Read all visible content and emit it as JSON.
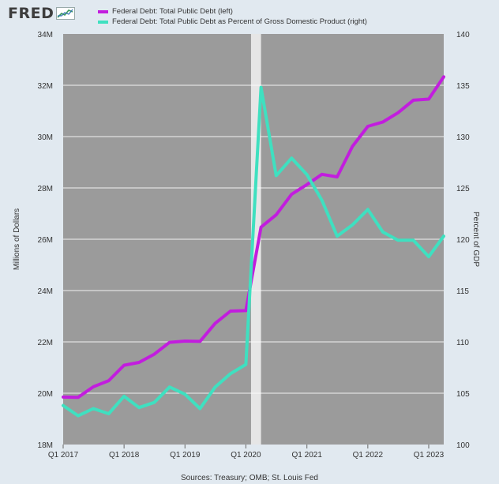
{
  "header": {
    "logo_text": "FRED",
    "logo_icon": "chart-line-icon"
  },
  "colors": {
    "background": "#e1e9f0",
    "plot_background": "#9b9b9b",
    "recession_shading": "#e6e6e6",
    "grid": "#ffffff",
    "series_left": "#c21dde",
    "series_right": "#3fe0c0"
  },
  "source": "Sources: Treasury; OMB; St. Louis Fed",
  "chart_data": {
    "type": "line",
    "x_axis": {
      "ticks": [
        "Q1 2017",
        "Q1 2018",
        "Q1 2019",
        "Q1 2020",
        "Q1 2021",
        "Q1 2022",
        "Q1 2023"
      ],
      "range": [
        "2017-01-01",
        "2023-04-01"
      ]
    },
    "y_left": {
      "label": "Millions of Dollars",
      "range": [
        18000000,
        34000000
      ],
      "ticks": [
        "18M",
        "20M",
        "22M",
        "24M",
        "26M",
        "28M",
        "30M",
        "32M",
        "34M"
      ]
    },
    "y_right": {
      "label": "Percent of GDP",
      "range": [
        100,
        140
      ],
      "ticks": [
        "100",
        "105",
        "110",
        "115",
        "120",
        "125",
        "130",
        "135",
        "140"
      ]
    },
    "recession": {
      "start": "2020-02-01",
      "end": "2020-04-01"
    },
    "grid": true,
    "legend_position": "top",
    "x": [
      "2017-01-01",
      "2017-04-01",
      "2017-07-01",
      "2017-10-01",
      "2018-01-01",
      "2018-04-01",
      "2018-07-01",
      "2018-10-01",
      "2019-01-01",
      "2019-04-01",
      "2019-07-01",
      "2019-10-01",
      "2020-01-01",
      "2020-04-01",
      "2020-07-01",
      "2020-10-01",
      "2021-01-01",
      "2021-04-01",
      "2021-07-01",
      "2021-10-01",
      "2022-01-01",
      "2022-04-01",
      "2022-07-01",
      "2022-10-01",
      "2023-01-01",
      "2023-04-01"
    ],
    "series": [
      {
        "name": "Federal Debt: Total Public Debt (left)",
        "axis": "left",
        "values": [
          19850000,
          19840000,
          20250000,
          20490000,
          21090000,
          21200000,
          21520000,
          21980000,
          22030000,
          22020000,
          22720000,
          23200000,
          23220000,
          26470000,
          26950000,
          27750000,
          28130000,
          28530000,
          28430000,
          29620000,
          30400000,
          30570000,
          30930000,
          31420000,
          31460000,
          32330000
        ]
      },
      {
        "name": "Federal Debt: Total Public Debt as Percent of Gross Domestic Product (right)",
        "axis": "right",
        "values": [
          103.8,
          102.8,
          103.5,
          103.0,
          104.7,
          103.6,
          104.1,
          105.6,
          104.9,
          103.5,
          105.6,
          106.9,
          107.8,
          134.8,
          126.2,
          127.9,
          126.3,
          123.8,
          120.3,
          121.4,
          122.9,
          120.7,
          119.9,
          119.9,
          118.3,
          120.3
        ]
      }
    ]
  }
}
